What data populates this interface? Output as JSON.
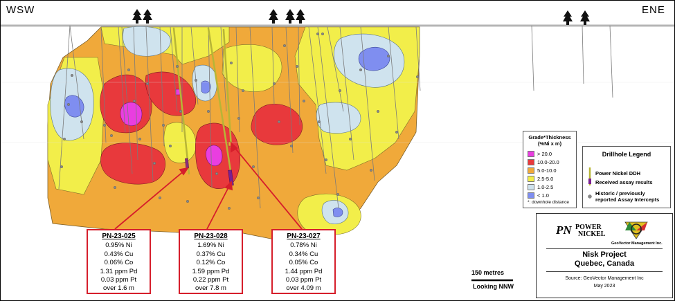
{
  "directions": {
    "west": "WSW",
    "east": "ENE"
  },
  "callouts": [
    {
      "id": "PN-23-025",
      "lines": [
        "0.95% Ni",
        "0.43% Cu",
        "0.06% Co",
        "1.31 ppm Pd",
        "0.03 ppm Pt",
        "over 1.6 m"
      ]
    },
    {
      "id": "PN-23-028",
      "lines": [
        "1.69% Ni",
        "0.37% Cu",
        "0.12% Co",
        "1.59 ppm Pd",
        "0.22 ppm Pt",
        "over 7.8 m"
      ]
    },
    {
      "id": "PN-23-027",
      "lines": [
        "0.78% Ni",
        "0.34% Cu",
        "0.05% Co",
        "1.44 ppm Pd",
        "0.03 ppm Pt",
        "over 4.09 m"
      ]
    }
  ],
  "grade_legend": {
    "title_line1": "Grade*Thickness",
    "title_line2": "(%Ni x m)",
    "items": [
      {
        "label": "> 20.0",
        "color": "#e93ee0"
      },
      {
        "label": "10.0-20.0",
        "color": "#e8393c"
      },
      {
        "label": "5.0-10.0",
        "color": "#f0a93a"
      },
      {
        "label": "2.5-5.0",
        "color": "#f2ee4a"
      },
      {
        "label": "1.0-2.5",
        "color": "#cfe3ee"
      },
      {
        "label": "< 1.0",
        "color": "#7f8ef0"
      }
    ],
    "footnote": "*: downhole distance"
  },
  "drillhole_legend": {
    "title": "Drillhole Legend",
    "items": [
      "Power Nickel DDH",
      "Received assay results",
      "Historic / previously reported Assay Intercepts"
    ]
  },
  "scale": {
    "label": "150 metres",
    "view": "Looking NNW"
  },
  "title_block": {
    "logo_left_line1": "POWER",
    "logo_left_line2": "NICKEL",
    "logo_right_caption": "GeoVector Management Inc.",
    "project": "Nisk Project",
    "location": "Quebec, Canada",
    "source": "Source: GeoVector Management Inc",
    "date": "May 2023"
  },
  "colors": {
    "gt_gt20": "#e93ee0",
    "gt_10_20": "#e8393c",
    "gt_5_10": "#f0a93a",
    "gt_25_5": "#f2ee4a",
    "gt_1_25": "#cfe3ee",
    "gt_lt1": "#7f8ef0",
    "callout_border": "#d61e2b"
  }
}
